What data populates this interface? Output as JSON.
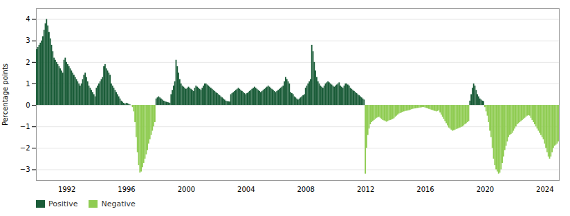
{
  "chart_data": {
    "type": "bar",
    "ylabel": "Percentage points",
    "ylim": [
      -3.5,
      4.5
    ],
    "yticks": [
      -3,
      -2,
      -1,
      0,
      1,
      2,
      3,
      4
    ],
    "grid": true,
    "legend": "bottom",
    "categories": [
      null,
      null,
      null,
      null,
      null,
      null,
      null,
      null,
      null,
      null,
      null,
      null,
      null,
      null,
      null,
      null,
      null,
      null,
      null,
      null,
      null,
      null,
      null,
      null,
      "1992",
      null,
      null,
      null,
      null,
      null,
      null,
      null,
      null,
      null,
      null,
      null,
      null,
      null,
      null,
      null,
      null,
      null,
      null,
      null,
      null,
      null,
      null,
      null,
      null,
      null,
      null,
      null,
      null,
      null,
      null,
      null,
      null,
      null,
      null,
      null,
      null,
      null,
      null,
      null,
      null,
      null,
      null,
      null,
      null,
      null,
      null,
      null,
      "1996",
      null,
      null,
      null,
      null,
      null,
      null,
      null,
      null,
      null,
      null,
      null,
      null,
      null,
      null,
      null,
      null,
      null,
      null,
      null,
      null,
      null,
      null,
      null,
      null,
      null,
      null,
      null,
      null,
      null,
      null,
      null,
      null,
      null,
      null,
      null,
      null,
      null,
      null,
      null,
      null,
      null,
      null,
      null,
      null,
      null,
      null,
      null,
      "2000",
      null,
      null,
      null,
      null,
      null,
      null,
      null,
      null,
      null,
      null,
      null,
      null,
      null,
      null,
      null,
      null,
      null,
      null,
      null,
      null,
      null,
      null,
      null,
      null,
      null,
      null,
      null,
      null,
      null,
      null,
      null,
      null,
      null,
      null,
      null,
      null,
      null,
      null,
      null,
      null,
      null,
      null,
      null,
      null,
      null,
      null,
      null,
      "2004",
      null,
      null,
      null,
      null,
      null,
      null,
      null,
      null,
      null,
      null,
      null,
      null,
      null,
      null,
      null,
      null,
      null,
      null,
      null,
      null,
      null,
      null,
      null,
      null,
      null,
      null,
      null,
      null,
      null,
      null,
      null,
      null,
      null,
      null,
      null,
      null,
      null,
      null,
      null,
      null,
      null,
      null,
      null,
      null,
      null,
      null,
      null,
      "2008",
      null,
      null,
      null,
      null,
      null,
      null,
      null,
      null,
      null,
      null,
      null,
      null,
      null,
      null,
      null,
      null,
      null,
      null,
      null,
      null,
      null,
      null,
      null,
      null,
      null,
      null,
      null,
      null,
      null,
      null,
      null,
      null,
      null,
      null,
      null,
      null,
      null,
      null,
      null,
      null,
      null,
      null,
      null,
      null,
      null,
      null,
      null,
      "2012",
      null,
      null,
      null,
      null,
      null,
      null,
      null,
      null,
      null,
      null,
      null,
      null,
      null,
      null,
      null,
      null,
      null,
      null,
      null,
      null,
      null,
      null,
      null,
      null,
      null,
      null,
      null,
      null,
      null,
      null,
      null,
      null,
      null,
      null,
      null,
      null,
      null,
      null,
      null,
      null,
      null,
      null,
      null,
      null,
      null,
      null,
      null,
      "2016",
      null,
      null,
      null,
      null,
      null,
      null,
      null,
      null,
      null,
      null,
      null,
      null,
      null,
      null,
      null,
      null,
      null,
      null,
      null,
      null,
      null,
      null,
      null,
      null,
      null,
      null,
      null,
      null,
      null,
      null,
      null,
      null,
      null,
      null,
      null,
      null,
      null,
      null,
      null,
      null,
      null,
      null,
      null,
      null,
      null,
      null,
      null,
      "2020",
      null,
      null,
      null,
      null,
      null,
      null,
      null,
      null,
      null,
      null,
      null,
      null,
      null,
      null,
      null,
      null,
      null,
      null,
      null,
      null,
      null,
      null,
      null,
      null,
      null,
      null,
      null,
      null,
      null,
      null,
      null,
      null,
      null,
      null,
      null,
      null,
      null,
      null,
      null,
      null,
      null,
      null,
      null,
      null,
      null,
      null,
      null,
      "2024",
      null,
      null,
      null,
      null,
      null,
      null,
      null,
      null,
      null,
      null,
      null
    ],
    "series": [
      {
        "name": "Positive",
        "color": "#1a5c38",
        "values": [
          2.6,
          2.7,
          2.8,
          2.9,
          3.0,
          3.2,
          3.5,
          3.8,
          4.0,
          3.7,
          3.4,
          3.1,
          2.8,
          2.5,
          2.2,
          2.1,
          2.0,
          1.9,
          1.8,
          1.7,
          1.6,
          1.5,
          2.1,
          2.2,
          2.0,
          1.9,
          1.8,
          1.7,
          1.6,
          1.5,
          1.4,
          1.3,
          1.2,
          1.1,
          1.0,
          0.9,
          1.0,
          1.2,
          1.4,
          1.5,
          1.3,
          1.1,
          0.9,
          0.8,
          0.7,
          0.6,
          0.5,
          0.4,
          0.8,
          0.9,
          1.0,
          1.1,
          1.2,
          1.3,
          1.8,
          1.9,
          1.7,
          1.6,
          1.5,
          1.4,
          1.0,
          0.9,
          0.8,
          0.7,
          0.6,
          0.5,
          0.4,
          0.3,
          0.2,
          0.15,
          0.1,
          0.05,
          0.1,
          0.08,
          0.05,
          0.02,
          0.0,
          null,
          null,
          null,
          null,
          null,
          null,
          null,
          null,
          null,
          null,
          null,
          null,
          null,
          null,
          null,
          null,
          null,
          null,
          null,
          0.3,
          0.35,
          0.4,
          0.35,
          0.3,
          0.25,
          0.2,
          0.18,
          0.15,
          0.13,
          0.12,
          0.1,
          0.5,
          0.7,
          0.9,
          1.1,
          2.1,
          1.8,
          1.5,
          1.2,
          1.0,
          0.9,
          0.85,
          0.8,
          0.75,
          0.8,
          0.85,
          0.8,
          0.75,
          0.7,
          0.65,
          0.8,
          0.9,
          0.85,
          0.8,
          0.75,
          0.7,
          0.8,
          0.9,
          1.0,
          1.0,
          0.95,
          0.9,
          0.85,
          0.8,
          0.75,
          0.7,
          0.65,
          0.6,
          0.55,
          0.5,
          0.45,
          0.4,
          0.35,
          0.3,
          0.25,
          0.2,
          0.18,
          0.17,
          0.16,
          0.5,
          0.55,
          0.6,
          0.65,
          0.7,
          0.75,
          0.8,
          0.75,
          0.7,
          0.65,
          0.6,
          0.55,
          0.5,
          0.55,
          0.6,
          0.65,
          0.7,
          0.75,
          0.8,
          0.85,
          0.8,
          0.75,
          0.7,
          0.65,
          0.6,
          0.65,
          0.7,
          0.75,
          0.8,
          0.85,
          0.9,
          0.85,
          0.8,
          0.75,
          0.7,
          0.65,
          0.6,
          0.65,
          0.7,
          0.75,
          0.8,
          0.85,
          0.9,
          1.1,
          1.3,
          1.2,
          1.1,
          1.0,
          0.6,
          0.55,
          0.5,
          0.4,
          0.35,
          0.3,
          0.25,
          0.3,
          0.35,
          0.4,
          0.45,
          0.5,
          0.8,
          0.9,
          1.0,
          1.1,
          1.2,
          2.8,
          2.5,
          2.0,
          1.6,
          1.3,
          1.1,
          1.0,
          0.9,
          0.85,
          0.8,
          0.9,
          1.0,
          1.05,
          1.1,
          1.05,
          1.0,
          0.95,
          0.9,
          0.85,
          0.9,
          0.95,
          1.0,
          1.05,
          0.9,
          0.85,
          0.8,
          0.9,
          1.0,
          1.0,
          0.95,
          0.9,
          0.8,
          0.75,
          0.7,
          0.65,
          0.6,
          0.55,
          0.5,
          0.45,
          0.4,
          0.35,
          0.3,
          0.25,
          null,
          null,
          null,
          null,
          null,
          null,
          null,
          null,
          null,
          null,
          null,
          null,
          null,
          null,
          null,
          null,
          null,
          null,
          null,
          null,
          null,
          null,
          null,
          null,
          null,
          null,
          null,
          null,
          null,
          null,
          null,
          null,
          null,
          null,
          null,
          null,
          null,
          null,
          null,
          null,
          null,
          null,
          null,
          null,
          null,
          null,
          null,
          null,
          null,
          null,
          null,
          null,
          null,
          null,
          null,
          null,
          null,
          null,
          null,
          null,
          null,
          null,
          null,
          null,
          null,
          null,
          null,
          null,
          null,
          null,
          null,
          null,
          null,
          null,
          null,
          null,
          null,
          null,
          null,
          null,
          null,
          null,
          null,
          null,
          0.2,
          0.5,
          0.8,
          1.0,
          0.9,
          0.7,
          0.5,
          0.4,
          0.3,
          0.25,
          0.2,
          0.18,
          null,
          null,
          null,
          null,
          null,
          null,
          null,
          null,
          null,
          null,
          null,
          null,
          null,
          null,
          null,
          null,
          null,
          null,
          null,
          null,
          null,
          null,
          null,
          null,
          null,
          null,
          null,
          null,
          null,
          null,
          null,
          null,
          null,
          null,
          null,
          null,
          null,
          null,
          null,
          null,
          null,
          null,
          null,
          null,
          null,
          null,
          null,
          null,
          null,
          null,
          null,
          null,
          null,
          null,
          null,
          null,
          null,
          null,
          null,
          null
        ]
      },
      {
        "name": "Negative",
        "color": "#8fcc52",
        "values": [
          null,
          null,
          null,
          null,
          null,
          null,
          null,
          null,
          null,
          null,
          null,
          null,
          null,
          null,
          null,
          null,
          null,
          null,
          null,
          null,
          null,
          null,
          null,
          null,
          null,
          null,
          null,
          null,
          null,
          null,
          null,
          null,
          null,
          null,
          null,
          null,
          null,
          null,
          null,
          null,
          null,
          null,
          null,
          null,
          null,
          null,
          null,
          null,
          null,
          null,
          null,
          null,
          null,
          null,
          null,
          null,
          null,
          null,
          null,
          null,
          null,
          null,
          null,
          null,
          null,
          null,
          null,
          null,
          null,
          null,
          null,
          null,
          null,
          null,
          null,
          null,
          null,
          -0.1,
          -0.3,
          -0.8,
          -1.5,
          -2.2,
          -2.8,
          -3.15,
          -3.1,
          -2.9,
          -2.7,
          -2.5,
          -2.3,
          -2.1,
          -1.8,
          -1.6,
          -1.4,
          -1.2,
          -1.0,
          -0.8,
          null,
          null,
          null,
          null,
          null,
          null,
          null,
          null,
          null,
          null,
          null,
          null,
          null,
          null,
          null,
          null,
          null,
          null,
          null,
          null,
          null,
          null,
          null,
          null,
          null,
          null,
          null,
          null,
          null,
          null,
          null,
          null,
          null,
          null,
          null,
          null,
          null,
          null,
          null,
          null,
          null,
          null,
          null,
          null,
          null,
          null,
          null,
          null,
          null,
          null,
          null,
          null,
          null,
          null,
          null,
          null,
          null,
          null,
          null,
          null,
          null,
          null,
          null,
          null,
          null,
          null,
          null,
          null,
          null,
          null,
          null,
          null,
          null,
          null,
          null,
          null,
          null,
          null,
          null,
          null,
          null,
          null,
          null,
          null,
          null,
          null,
          null,
          null,
          null,
          null,
          null,
          null,
          null,
          null,
          null,
          null,
          null,
          null,
          null,
          null,
          null,
          null,
          null,
          null,
          null,
          null,
          null,
          null,
          null,
          null,
          null,
          null,
          null,
          null,
          null,
          null,
          null,
          null,
          null,
          null,
          null,
          null,
          null,
          null,
          null,
          null,
          null,
          null,
          null,
          null,
          null,
          null,
          null,
          null,
          null,
          null,
          null,
          null,
          null,
          null,
          null,
          null,
          null,
          null,
          null,
          null,
          null,
          null,
          null,
          null,
          null,
          null,
          null,
          null,
          null,
          null,
          null,
          null,
          null,
          null,
          null,
          null,
          null,
          null,
          null,
          null,
          null,
          null,
          -3.2,
          -2.0,
          -1.4,
          -1.1,
          -0.9,
          -0.8,
          -0.75,
          -0.7,
          -0.65,
          -0.6,
          -0.58,
          -0.55,
          -0.6,
          -0.65,
          -0.7,
          -0.72,
          -0.75,
          -0.78,
          -0.75,
          -0.72,
          -0.7,
          -0.68,
          -0.65,
          -0.62,
          -0.55,
          -0.5,
          -0.45,
          -0.4,
          -0.38,
          -0.35,
          -0.32,
          -0.3,
          -0.28,
          -0.27,
          -0.26,
          -0.25,
          -0.22,
          -0.2,
          -0.18,
          -0.17,
          -0.16,
          -0.15,
          -0.14,
          -0.13,
          -0.12,
          -0.11,
          -0.1,
          -0.1,
          -0.12,
          -0.14,
          -0.16,
          -0.18,
          -0.2,
          -0.22,
          -0.24,
          -0.26,
          -0.28,
          -0.3,
          -0.28,
          -0.25,
          -0.35,
          -0.45,
          -0.55,
          -0.65,
          -0.75,
          -0.85,
          -0.95,
          -1.05,
          -1.1,
          -1.15,
          -1.2,
          -1.18,
          -1.15,
          -1.12,
          -1.1,
          -1.08,
          -1.05,
          -1.02,
          -1.0,
          -0.95,
          -0.9,
          -0.85,
          -0.8,
          -0.75,
          null,
          null,
          null,
          null,
          null,
          null,
          null,
          null,
          null,
          null,
          null,
          null,
          -0.1,
          -0.3,
          -0.5,
          -0.8,
          -1.2,
          -1.5,
          -2.0,
          -2.5,
          -2.8,
          -3.0,
          -3.1,
          -3.2,
          -3.15,
          -3.0,
          -2.7,
          -2.4,
          -2.1,
          -1.9,
          -1.7,
          -1.5,
          -1.4,
          -1.35,
          -1.3,
          -1.2,
          -1.1,
          -1.0,
          -0.9,
          -0.85,
          -0.8,
          -0.75,
          -0.7,
          -0.65,
          -0.6,
          -0.55,
          -0.5,
          -0.48,
          -0.5,
          -0.6,
          -0.7,
          -0.8,
          -0.9,
          -1.0,
          -1.1,
          -1.2,
          -1.3,
          -1.4,
          -1.5,
          -1.6,
          -1.8,
          -2.0,
          -2.2,
          -2.4,
          -2.5,
          -2.4,
          -2.2,
          -2.0,
          -1.9,
          -1.85,
          -1.8,
          -1.7
        ]
      }
    ]
  }
}
